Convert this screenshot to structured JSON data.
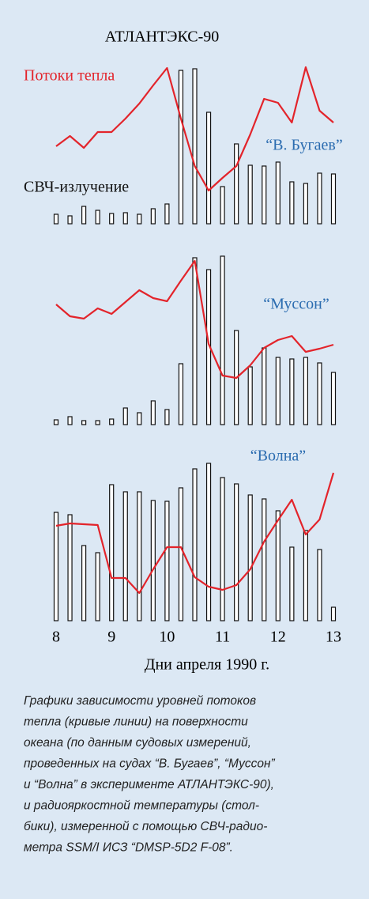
{
  "chart_data": [
    {
      "type": "bar",
      "title": "АТЛАНТЭКС-90",
      "label": "“В. Бугаев”",
      "x": [
        8,
        8.25,
        8.5,
        8.75,
        9,
        9.25,
        9.5,
        9.75,
        10,
        10.25,
        10.5,
        10.75,
        11,
        11.25,
        11.5,
        11.75,
        12,
        12.25,
        12.5,
        12.75,
        13
      ],
      "xlim": [
        8,
        13
      ],
      "ylim": [
        0,
        220
      ],
      "series": [
        {
          "name": "СВЧ-излучение",
          "type": "bar",
          "color": "#111111",
          "values": [
            12,
            10,
            22,
            17,
            13,
            14,
            12,
            19,
            25,
            194,
            196,
            141,
            47,
            101,
            74,
            73,
            78,
            53,
            51,
            64,
            63
          ]
        },
        {
          "name": "Потоки тепла",
          "type": "line",
          "color": "#e3242b",
          "values": [
            98,
            111,
            96,
            116,
            116,
            133,
            152,
            175,
            197,
            133,
            73,
            42,
            58,
            73,
            113,
            158,
            153,
            128,
            198,
            143,
            128
          ]
        }
      ]
    },
    {
      "type": "bar",
      "label": "“Муссон”",
      "x": [
        8,
        8.25,
        8.5,
        8.75,
        9,
        9.25,
        9.5,
        9.75,
        10,
        10.25,
        10.5,
        10.75,
        11,
        11.25,
        11.5,
        11.75,
        12,
        12.25,
        12.5,
        12.75,
        13
      ],
      "xlim": [
        8,
        13
      ],
      "ylim": [
        0,
        220
      ],
      "series": [
        {
          "type": "bar",
          "color": "#111111",
          "values": [
            6,
            10,
            5,
            5,
            7,
            21,
            15,
            30,
            19,
            77,
            211,
            196,
            213,
            119,
            73,
            97,
            85,
            83,
            85,
            78,
            66
          ]
        },
        {
          "type": "line",
          "color": "#e3242b",
          "values": [
            152,
            137,
            134,
            147,
            140,
            155,
            170,
            160,
            156,
            182,
            207,
            102,
            62,
            59,
            75,
            97,
            107,
            112,
            92,
            96,
            101
          ]
        }
      ]
    },
    {
      "type": "bar",
      "label": "“Волна”",
      "xlabel": "Дни апреля 1990 г.",
      "x": [
        8,
        8.25,
        8.5,
        8.75,
        9,
        9.25,
        9.5,
        9.75,
        10,
        10.25,
        10.5,
        10.75,
        11,
        11.25,
        11.5,
        11.75,
        12,
        12.25,
        12.5,
        12.75,
        13
      ],
      "xlim": [
        8,
        13
      ],
      "xticks": [
        8,
        9,
        10,
        11,
        12,
        13
      ],
      "ylim": [
        0,
        220
      ],
      "series": [
        {
          "type": "bar",
          "color": "#111111",
          "values": [
            137,
            134,
            95,
            86,
            172,
            163,
            163,
            152,
            151,
            168,
            192,
            199,
            181,
            173,
            159,
            154,
            139,
            93,
            114,
            90,
            17
          ]
        },
        {
          "type": "line",
          "color": "#e3242b",
          "values": [
            120,
            123,
            122,
            121,
            54,
            54,
            35,
            65,
            93,
            93,
            55,
            43,
            39,
            45,
            65,
            100,
            127,
            153,
            109,
            128,
            187
          ]
        }
      ]
    }
  ],
  "caption": [
    "Графики зависимости уровней потоков",
    "тепла (кривые линии) на поверхности",
    "океана (по данным судовых измерений,",
    "проведенных на судах “В. Бугаев”, “Муссон”",
    "и “Волна” в эксперименте АТЛАНТЭКС-90),",
    "и радиояркостной температуры (стол-",
    "бики), измеренной с помощью СВЧ-радио-",
    "метра SSM/I ИСЗ “DMSP-5D2 F-08”."
  ]
}
